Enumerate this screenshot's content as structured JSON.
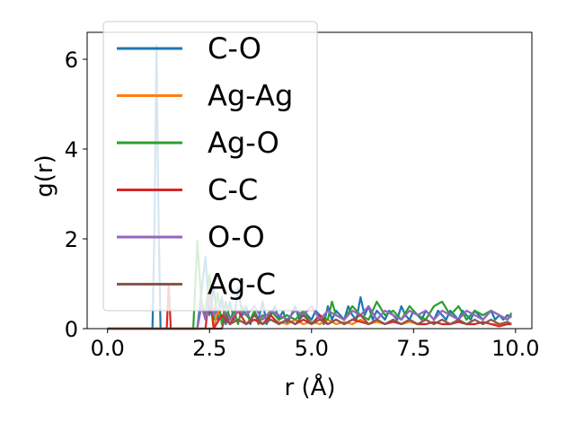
{
  "chart_data": {
    "type": "line",
    "xlabel": "r (Å)",
    "ylabel": "g(r)",
    "xlim": [
      -0.5,
      10.4
    ],
    "ylim": [
      0,
      6.6
    ],
    "xticks": [
      0.0,
      2.5,
      5.0,
      7.5,
      10.0
    ],
    "xtick_labels": [
      "0.0",
      "2.5",
      "5.0",
      "7.5",
      "10.0"
    ],
    "yticks": [
      0,
      2,
      4,
      6
    ],
    "ytick_labels": [
      "0",
      "2",
      "4",
      "6"
    ],
    "grid": false,
    "legend_position": "top-left",
    "series": [
      {
        "name": "C-O",
        "color": "#1f77b4",
        "x": [
          0.0,
          1.0,
          1.1,
          1.15,
          1.2,
          1.25,
          1.3,
          1.4,
          2.2,
          2.3,
          2.4,
          2.5,
          2.6,
          2.7,
          2.8,
          2.9,
          3.0,
          3.1,
          3.2,
          3.3,
          3.4,
          3.5,
          3.6,
          3.7,
          3.8,
          3.9,
          4.0,
          4.1,
          4.2,
          4.3,
          4.4,
          4.5,
          4.6,
          4.7,
          4.8,
          4.9,
          5.0,
          5.1,
          5.2,
          5.3,
          5.4,
          5.5,
          5.6,
          5.7,
          5.8,
          5.9,
          6.0,
          6.1,
          6.2,
          6.3,
          6.4,
          6.5,
          6.6,
          6.7,
          6.8,
          6.9,
          7.0,
          7.1,
          7.2,
          7.3,
          7.4,
          7.5,
          7.6,
          7.7,
          7.8,
          7.9,
          8.0,
          8.1,
          8.2,
          8.3,
          8.4,
          8.5,
          8.6,
          8.7,
          8.8,
          8.9,
          9.0,
          9.1,
          9.2,
          9.3,
          9.4,
          9.5,
          9.6,
          9.7,
          9.8,
          9.9
        ],
        "y": [
          0,
          0,
          0,
          2.2,
          6.3,
          2.4,
          0,
          0,
          0,
          0.8,
          1.6,
          0.3,
          0.9,
          0.2,
          0.7,
          0.1,
          0.6,
          0.2,
          0.9,
          0.3,
          0.5,
          0.1,
          0.4,
          0.2,
          0.6,
          0.1,
          0.3,
          0.5,
          0.2,
          0.4,
          0.1,
          0.3,
          0.5,
          0.2,
          0.4,
          0.3,
          0.2,
          0.4,
          0.3,
          0.1,
          0.5,
          0.2,
          0.4,
          0.3,
          0.2,
          0.5,
          0.3,
          0.2,
          0.7,
          0.3,
          0.5,
          0.2,
          0.4,
          0.3,
          0.2,
          0.4,
          0.3,
          0.2,
          0.5,
          0.3,
          0.2,
          0.4,
          0.3,
          0.2,
          0.4,
          0.3,
          0.2,
          0.4,
          0.3,
          0.2,
          0.4,
          0.3,
          0.2,
          0.4,
          0.3,
          0.2,
          0.4,
          0.3,
          0.2,
          0.3,
          0.4,
          0.2,
          0.3,
          0.2,
          0.3,
          0.25
        ]
      },
      {
        "name": "Ag-Ag",
        "color": "#ff7f0e",
        "x": [
          0.0,
          2.6,
          2.7,
          2.8,
          2.9,
          3.0,
          3.2,
          3.4,
          3.6,
          3.8,
          4.0,
          4.2,
          4.4,
          4.6,
          4.8,
          5.0,
          5.2,
          5.4,
          5.6,
          5.8,
          6.0,
          6.2,
          6.4,
          6.6,
          6.8,
          7.0,
          7.2,
          7.4,
          7.6,
          7.8,
          8.0,
          8.2,
          8.4,
          8.6,
          8.8,
          9.0,
          9.2,
          9.4,
          9.6,
          9.8,
          9.9
        ],
        "y": [
          0,
          0,
          0.4,
          0.2,
          0.3,
          0.1,
          0.2,
          0.1,
          0.3,
          0.1,
          0.2,
          0.15,
          0.1,
          0.2,
          0.1,
          0.15,
          0.1,
          0.2,
          0.1,
          0.15,
          0.1,
          0.2,
          0.1,
          0.15,
          0.1,
          0.2,
          0.1,
          0.15,
          0.1,
          0.1,
          0.15,
          0.1,
          0.1,
          0.15,
          0.1,
          0.1,
          0.15,
          0.1,
          0.1,
          0.1,
          0.1
        ]
      },
      {
        "name": "Ag-O",
        "color": "#2ca02c",
        "x": [
          0.0,
          2.0,
          2.1,
          2.2,
          2.3,
          2.4,
          2.5,
          2.6,
          2.7,
          2.8,
          2.9,
          3.0,
          3.1,
          3.2,
          3.3,
          3.4,
          3.5,
          3.6,
          3.7,
          3.8,
          3.9,
          4.0,
          4.2,
          4.4,
          4.6,
          4.8,
          5.0,
          5.2,
          5.4,
          5.5,
          5.6,
          5.8,
          6.0,
          6.2,
          6.4,
          6.6,
          6.8,
          7.0,
          7.2,
          7.4,
          7.6,
          7.8,
          8.0,
          8.2,
          8.4,
          8.6,
          8.8,
          9.0,
          9.2,
          9.4,
          9.6,
          9.8,
          9.9
        ],
        "y": [
          0,
          0,
          0,
          1.95,
          0.6,
          0.3,
          1.2,
          0.2,
          0.8,
          0.1,
          0.6,
          0.2,
          0.4,
          0.1,
          0.5,
          0.3,
          0.2,
          0.4,
          0.1,
          0.3,
          0.2,
          0.4,
          0.2,
          0.3,
          0.2,
          0.4,
          0.1,
          0.3,
          0.2,
          0.6,
          0.3,
          0.2,
          0.5,
          0.3,
          0.2,
          0.6,
          0.3,
          0.4,
          0.2,
          0.5,
          0.3,
          0.2,
          0.5,
          0.6,
          0.3,
          0.5,
          0.2,
          0.4,
          0.3,
          0.4,
          0.3,
          0.2,
          0.35
        ]
      },
      {
        "name": "C-C",
        "color": "#d62728",
        "x": [
          0.0,
          1.4,
          1.45,
          1.5,
          1.55,
          1.6,
          2.4,
          2.5,
          2.6,
          2.8,
          3.0,
          3.2,
          3.4,
          3.6,
          3.8,
          4.0,
          4.2,
          4.4,
          4.6,
          4.8,
          5.0,
          5.2,
          5.4,
          5.6,
          5.8,
          6.0,
          6.2,
          6.4,
          6.6,
          6.8,
          7.0,
          7.2,
          7.4,
          7.6,
          7.8,
          8.0,
          8.2,
          8.4,
          8.6,
          8.8,
          9.0,
          9.2,
          9.4,
          9.6,
          9.8,
          9.9
        ],
        "y": [
          0,
          0,
          0,
          1.0,
          0,
          0,
          0,
          0.8,
          0,
          0.3,
          0.1,
          0.4,
          0.1,
          0.2,
          0.1,
          0.3,
          0.1,
          0.2,
          0.1,
          0.2,
          0.1,
          0.3,
          0.1,
          0.2,
          0.1,
          0.2,
          0.15,
          0.1,
          0.2,
          0.1,
          0.15,
          0.1,
          0.2,
          0.1,
          0.1,
          0.15,
          0.1,
          0.1,
          0.15,
          0.1,
          0.1,
          0.15,
          0.1,
          0.05,
          0.1,
          0.1
        ]
      },
      {
        "name": "O-O",
        "color": "#9467bd",
        "x": [
          0.0,
          2.2,
          2.3,
          2.4,
          2.5,
          2.6,
          2.8,
          3.0,
          3.2,
          3.4,
          3.6,
          3.8,
          4.0,
          4.2,
          4.4,
          4.6,
          4.8,
          5.0,
          5.2,
          5.4,
          5.6,
          5.8,
          6.0,
          6.2,
          6.4,
          6.6,
          6.8,
          7.0,
          7.2,
          7.4,
          7.6,
          7.8,
          8.0,
          8.2,
          8.4,
          8.6,
          8.8,
          9.0,
          9.2,
          9.4,
          9.6,
          9.8,
          9.9
        ],
        "y": [
          0,
          0,
          0.5,
          0.2,
          0.7,
          0.3,
          0.5,
          0.2,
          0.4,
          0.3,
          0.5,
          0.2,
          0.4,
          0.3,
          0.2,
          0.4,
          0.3,
          0.5,
          0.2,
          0.4,
          0.3,
          0.2,
          0.4,
          0.3,
          0.5,
          0.2,
          0.4,
          0.3,
          0.2,
          0.4,
          0.3,
          0.4,
          0.2,
          0.4,
          0.3,
          0.2,
          0.4,
          0.3,
          0.2,
          0.4,
          0.3,
          0.2,
          0.3
        ]
      },
      {
        "name": "Ag-C",
        "color": "#8c564b",
        "x": [
          0.0,
          2.8,
          2.9,
          3.0,
          3.2,
          3.4,
          3.6,
          3.8,
          4.0,
          4.2,
          4.4,
          4.6,
          4.8,
          5.0,
          5.2,
          5.4,
          5.6,
          5.8,
          6.0,
          6.2,
          6.4,
          6.6,
          6.8,
          7.0,
          7.2,
          7.4,
          7.6,
          7.8,
          8.0,
          8.2,
          8.4,
          8.6,
          8.8,
          9.0,
          9.2,
          9.4,
          9.6,
          9.8,
          9.9
        ],
        "y": [
          0,
          0,
          0.3,
          0.1,
          0.2,
          0.1,
          0.3,
          0.1,
          0.2,
          0.1,
          0.2,
          0.1,
          0.3,
          0.1,
          0.2,
          0.1,
          0.2,
          0.1,
          0.2,
          0.3,
          0.1,
          0.2,
          0.1,
          0.2,
          0.1,
          0.2,
          0.1,
          0.2,
          0.1,
          0.2,
          0.1,
          0.2,
          0.1,
          0.2,
          0.1,
          0.2,
          0.1,
          0.15,
          0.1
        ]
      }
    ]
  }
}
